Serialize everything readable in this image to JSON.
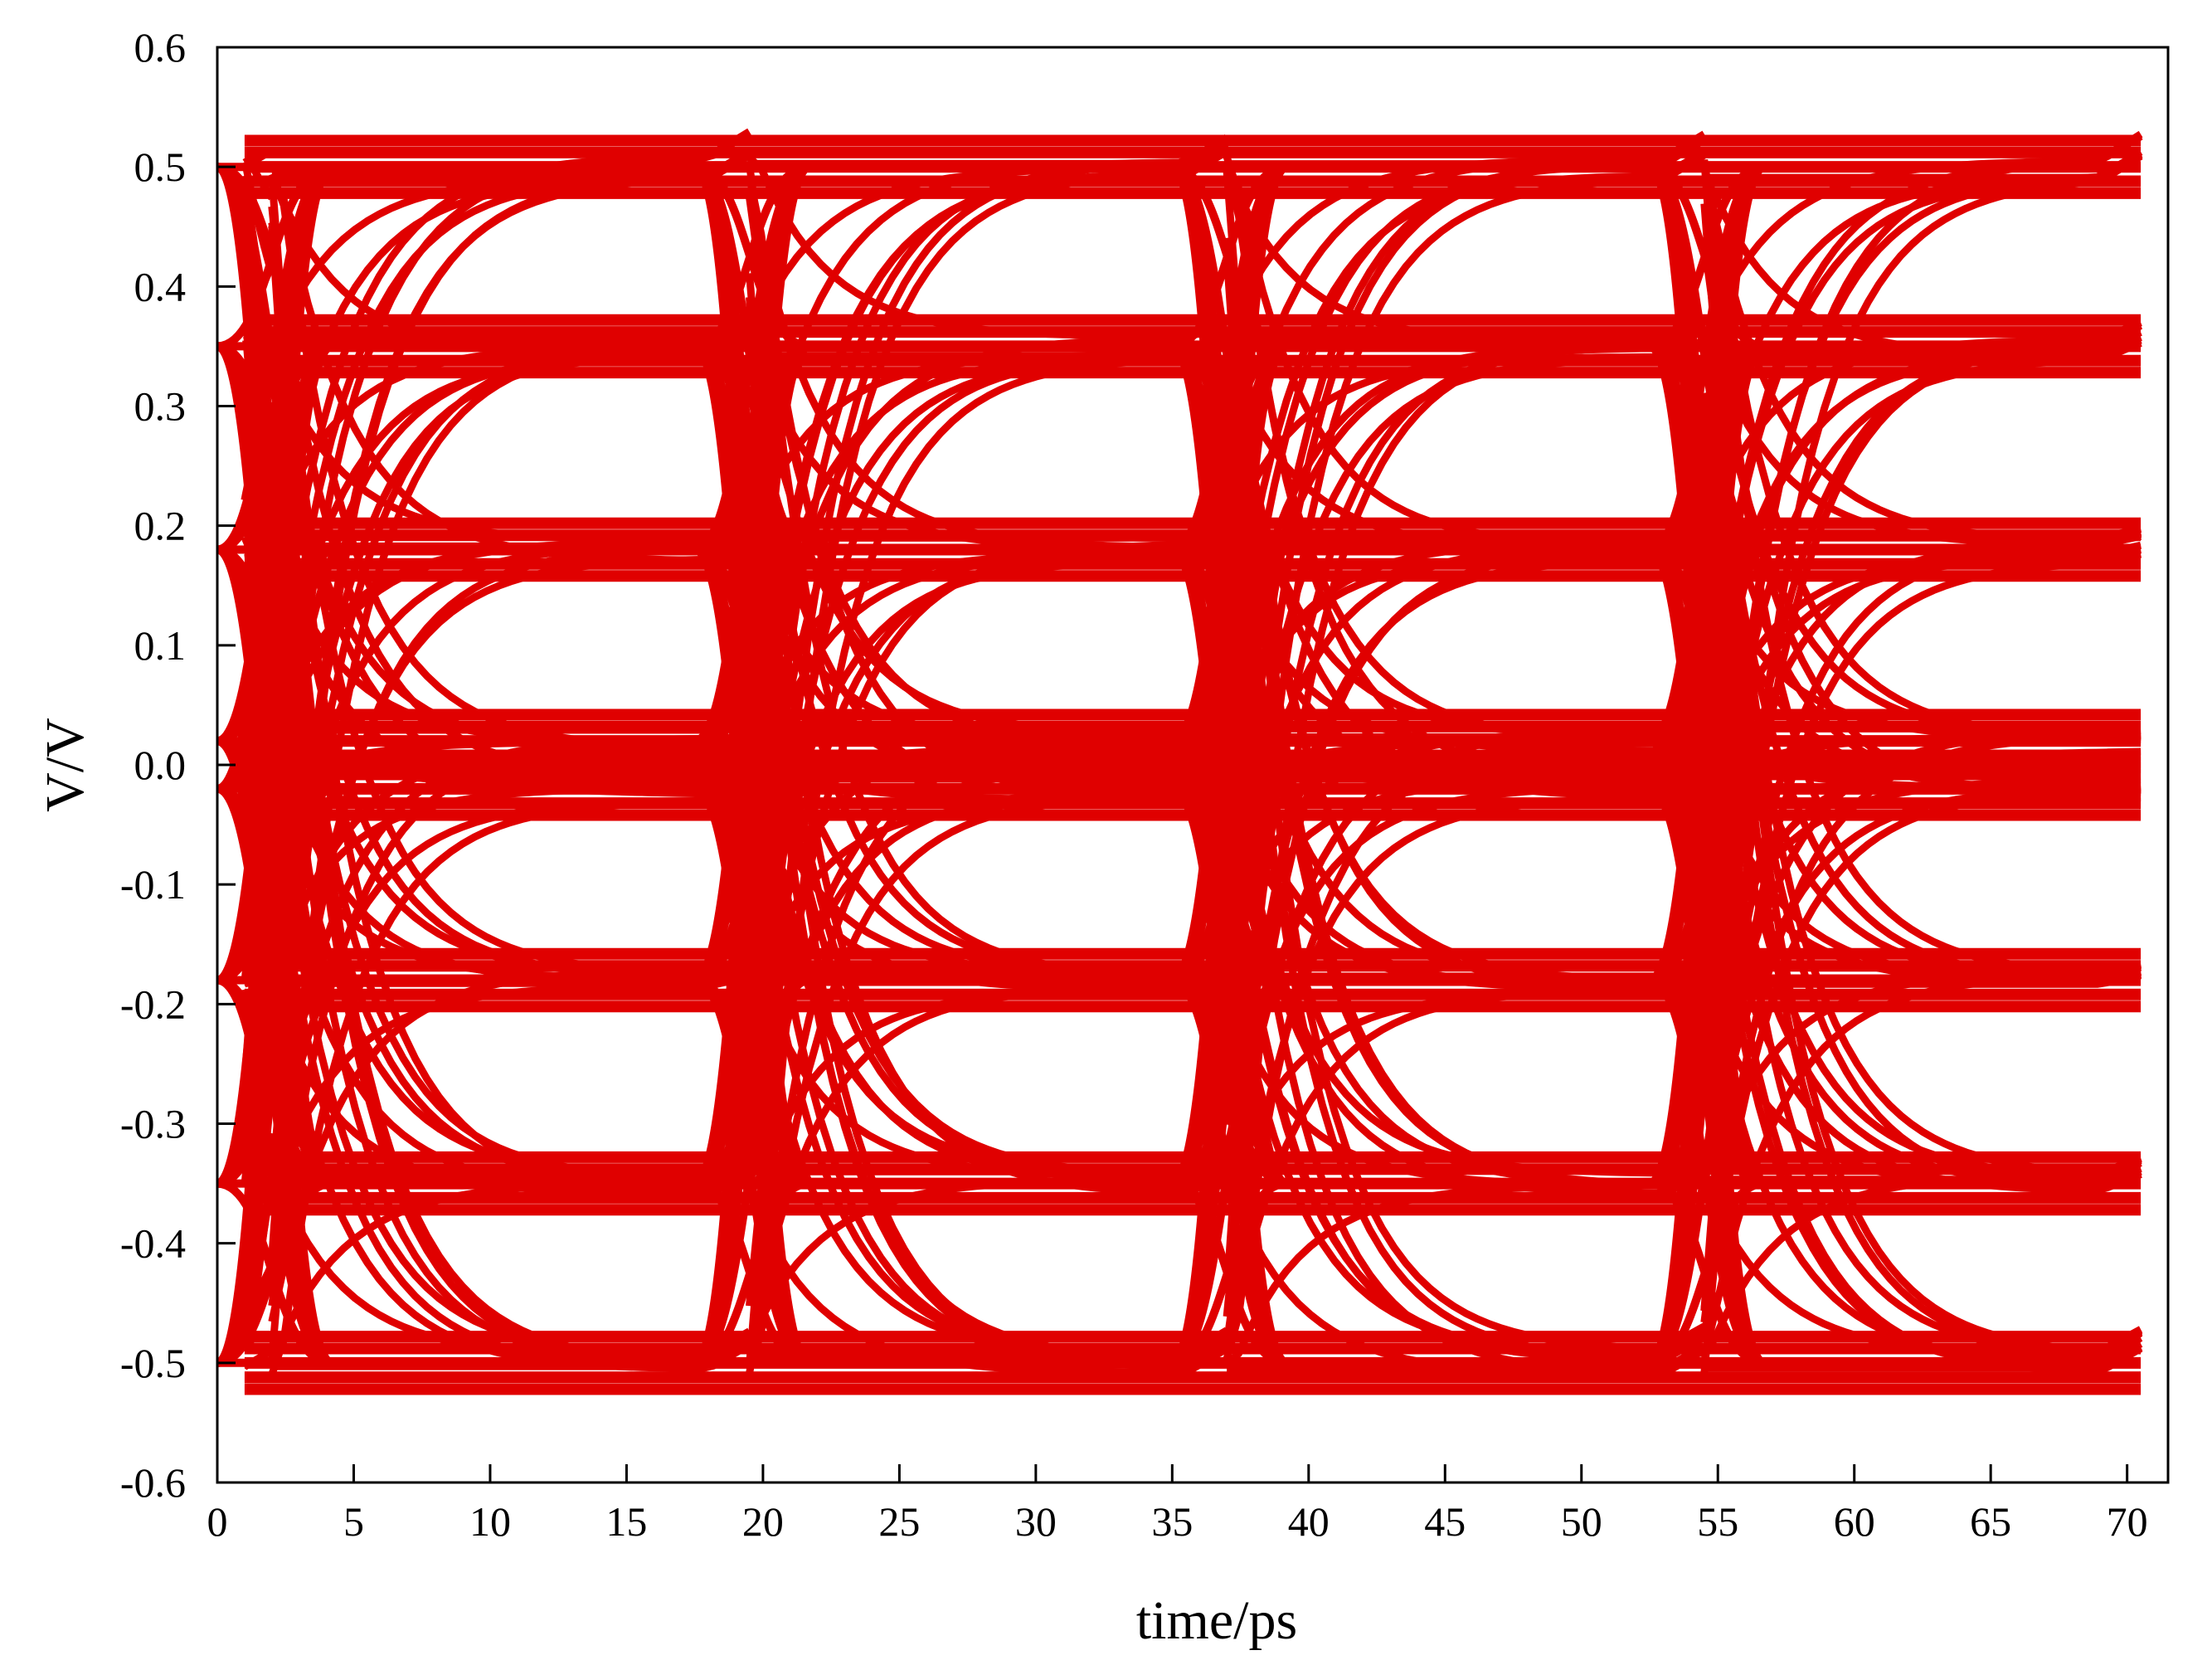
{
  "chart_data": {
    "type": "line",
    "title": "",
    "xlabel": "time/ps",
    "ylabel": "V/V",
    "xlim": [
      0,
      71.5
    ],
    "ylim": [
      -0.6,
      0.6
    ],
    "x_ticks": [
      0,
      5,
      10,
      15,
      20,
      25,
      30,
      35,
      40,
      45,
      50,
      55,
      60,
      65,
      70
    ],
    "x_tick_labels": [
      "0",
      "5",
      "10",
      "15",
      "20",
      "25",
      "30",
      "35",
      "40",
      "45",
      "50",
      "55",
      "60",
      "65",
      "70"
    ],
    "y_ticks": [
      0.6,
      0.5,
      0.4,
      0.3,
      0.2,
      0.1,
      0.0,
      -0.1,
      -0.2,
      -0.3,
      -0.4,
      -0.5,
      -0.6
    ],
    "y_tick_labels": [
      "0.6",
      "0.5",
      "0.4",
      "0.3",
      "0.2",
      "0.1",
      "0.0",
      "-0.1",
      "-0.2",
      "-0.3",
      "-0.4",
      "-0.5",
      "-0.6"
    ],
    "grid": false,
    "legend": "none",
    "series_color": "#e00000",
    "signal": {
      "kind": "PAM8 eye diagram",
      "levels": [
        -0.5,
        -0.35,
        -0.18,
        -0.02,
        0.02,
        0.18,
        0.35,
        0.5
      ],
      "crossing_times": [
        2,
        19.5,
        37,
        54.5
      ],
      "x_range": [
        1,
        70.5
      ],
      "y_range": [
        -0.52,
        0.53
      ]
    }
  }
}
